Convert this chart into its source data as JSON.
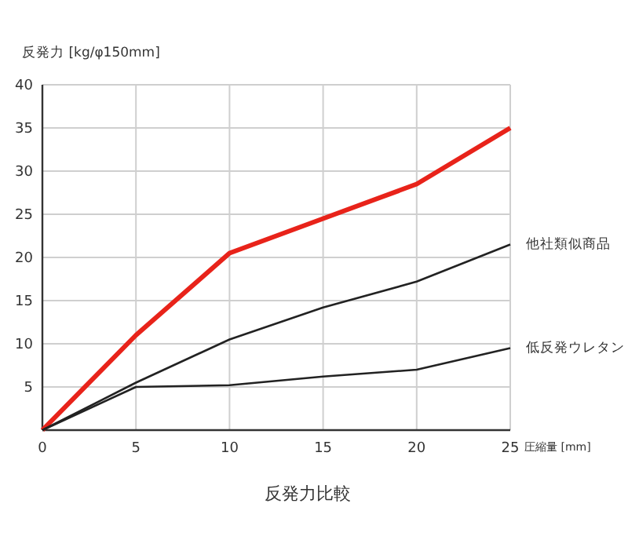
{
  "chart_data": {
    "type": "line",
    "title": "反発力比較",
    "ylabel": "反発力 [kg/φ150mm]",
    "xlabel": "圧縮量 [mm]",
    "x": [
      0,
      5,
      10,
      15,
      20,
      25
    ],
    "series": [
      {
        "color": "#e8231a",
        "values": [
          0,
          11,
          20.5,
          24.5,
          28.5,
          35
        ]
      },
      {
        "name": "他社類似商品",
        "color": "#222222",
        "values": [
          0,
          5.5,
          10.5,
          14.2,
          17.2,
          21.5
        ]
      },
      {
        "name": "低反発ウレタン",
        "color": "#222222",
        "values": [
          0,
          5,
          5.2,
          6.2,
          7,
          9.5
        ]
      }
    ],
    "xlim": [
      0,
      25
    ],
    "ylim": [
      0,
      40
    ],
    "xticks": [
      0,
      5,
      10,
      15,
      20,
      25
    ],
    "yticks": [
      5,
      10,
      15,
      20,
      25,
      30,
      35,
      40
    ],
    "grid": true,
    "marker": "none",
    "line_style": "solid"
  }
}
